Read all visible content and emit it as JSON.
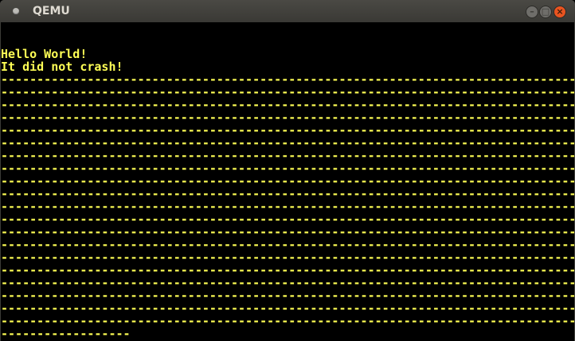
{
  "window": {
    "title": "QEMU"
  },
  "colors": {
    "text": "#ffff55",
    "background": "#000000",
    "close_button": "#e95420"
  },
  "icons": {
    "minimize": "minimize-icon",
    "maximize": "maximize-icon",
    "close": "close-icon"
  },
  "screen": {
    "lines": [
      "",
      "",
      "Hello World!",
      "It did not crash!",
      "--------------------------------------------------------------------------------",
      "--------------------------------------------------------------------------------",
      "--------------------------------------------------------------------------------",
      "--------------------------------------------------------------------------------",
      "--------------------------------------------------------------------------------",
      "--------------------------------------------------------------------------------",
      "--------------------------------------------------------------------------------",
      "--------------------------------------------------------------------------------",
      "--------------------------------------------------------------------------------",
      "--------------------------------------------------------------------------------",
      "--------------------------------------------------------------------------------",
      "--------------------------------------------------------------------------------",
      "--------------------------------------------------------------------------------",
      "--------------------------------------------------------------------------------",
      "--------------------------------------------------------------------------------",
      "--------------------------------------------------------------------------------",
      "--------------------------------------------------------------------------------",
      "--------------------------------------------------------------------------------",
      "--------------------------------------------------------------------------------",
      "--------------------------------------------------------------------------------",
      "------------------"
    ]
  }
}
